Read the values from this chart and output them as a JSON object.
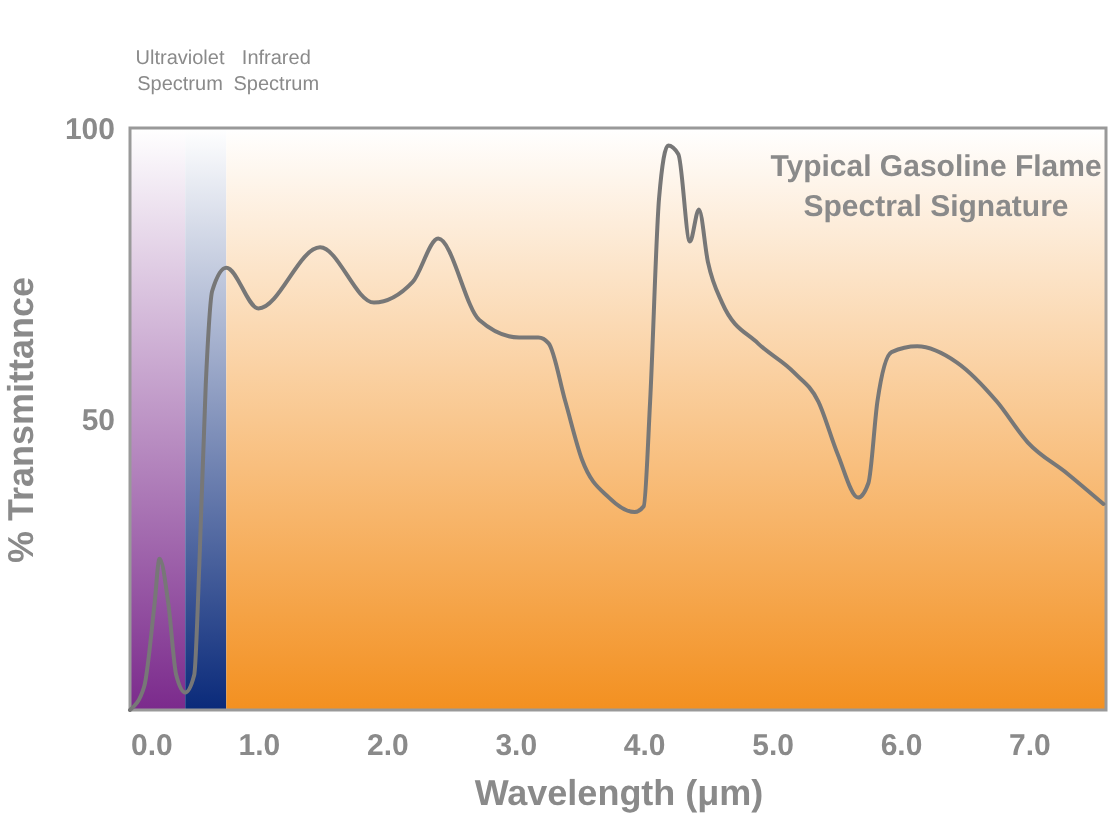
{
  "chart_data": {
    "type": "line",
    "title": "Typical Gasoline Flame\nSpectral Signature",
    "xlabel": "Wavelength (μm)",
    "ylabel": "% Transmittance",
    "x": [
      0,
      0.11,
      0.19,
      0.23,
      0.3,
      0.36,
      0.43,
      0.5,
      0.54,
      0.59,
      0.64,
      0.75,
      1.0,
      1.48,
      1.9,
      2.2,
      2.4,
      2.72,
      3.03,
      3.18,
      3.26,
      3.39,
      3.52,
      3.73,
      3.93,
      4.0,
      4.05,
      4.12,
      4.19,
      4.27,
      4.36,
      4.43,
      4.5,
      4.61,
      4.89,
      5.17,
      5.36,
      5.51,
      5.67,
      5.75,
      5.82,
      5.93,
      6.13,
      6.44,
      6.75,
      6.99,
      7.3,
      7.58
    ],
    "series": [
      {
        "color": "#777777",
        "values": [
          0,
          4,
          18,
          26,
          18,
          6,
          3,
          6,
          25,
          56,
          72,
          76,
          69,
          79.5,
          70,
          73.5,
          81,
          67,
          64,
          64,
          63,
          53,
          43,
          36.5,
          34,
          35,
          53,
          88,
          97,
          95.5,
          80.5,
          86,
          77,
          70,
          63,
          58,
          53,
          44,
          36.5,
          39,
          53,
          61.5,
          62.5,
          59.7,
          53,
          46,
          40.6,
          35.4
        ]
      }
    ],
    "xlim": [
      0,
      7.6
    ],
    "ylim": [
      0,
      100
    ],
    "xticks": [
      {
        "value": 0,
        "label": "0.0"
      },
      {
        "value": 1,
        "label": "1.0"
      },
      {
        "value": 2,
        "label": "2.0"
      },
      {
        "value": 3,
        "label": "3.0"
      },
      {
        "value": 4,
        "label": "4.0"
      },
      {
        "value": 5,
        "label": "5.0"
      },
      {
        "value": 6,
        "label": "6.0"
      },
      {
        "value": 7,
        "label": "7.0"
      }
    ],
    "yticks": [
      50,
      100
    ],
    "bands": [
      {
        "axis": "x",
        "from": 0,
        "to": 0.43,
        "label": "Ultraviolet\nSpectrum",
        "color": "#7b2a8c"
      },
      {
        "axis": "x",
        "from": 0.43,
        "to": 0.75,
        "color": "#0a2a7a"
      },
      {
        "axis": "x",
        "from": 0.75,
        "to": 7.6,
        "label": "Infrared\nSpectrum",
        "color": "#f39020"
      }
    ],
    "grid": false,
    "marker": "none",
    "line_style": "solid"
  }
}
